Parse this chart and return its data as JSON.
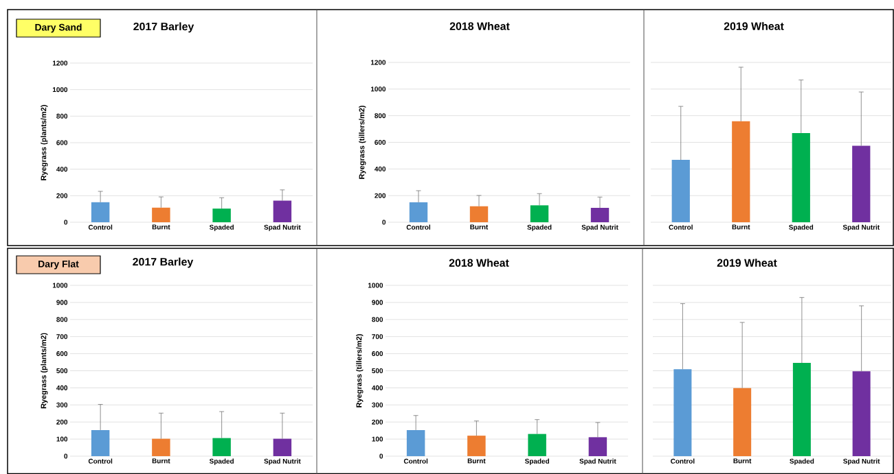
{
  "chart_data": [
    {
      "type": "bar",
      "title": "2017 Barley",
      "ylabel": "Ryegrass (plants/m2)",
      "annotations": [
        "Dary Sand"
      ],
      "categories": [
        "Control",
        "Burnt",
        "Spaded",
        "Spad Nutrit"
      ],
      "values": [
        151,
        110,
        103,
        163
      ],
      "errors": [
        [
          151,
          233
        ],
        [
          110,
          191
        ],
        [
          103,
          185
        ],
        [
          163,
          244
        ]
      ],
      "colors": [
        "#5b9bd5",
        "#ed7d31",
        "#00b050",
        "#7030a0"
      ],
      "ylim": [
        0,
        1200
      ],
      "yticks": [
        0,
        200,
        400,
        600,
        800,
        1000,
        1200
      ],
      "grid": "y"
    },
    {
      "type": "bar",
      "title": "2018 Wheat",
      "ylabel": "Ryegrass (tillers/m2)",
      "categories": [
        "Control",
        "Burnt",
        "Spaded",
        "Spad Nutrit"
      ],
      "values": [
        150,
        120,
        127,
        108
      ],
      "errors": [
        [
          150,
          237
        ],
        [
          120,
          201
        ],
        [
          127,
          215
        ],
        [
          108,
          189
        ]
      ],
      "colors": [
        "#5b9bd5",
        "#ed7d31",
        "#00b050",
        "#7030a0"
      ],
      "ylim": [
        0,
        1200
      ],
      "yticks": [
        0,
        200,
        400,
        600,
        800,
        1000,
        1200
      ],
      "grid": "y"
    },
    {
      "type": "bar",
      "title": "2019 Wheat",
      "categories": [
        "Control",
        "Burnt",
        "Spaded",
        "Spad Nutrit"
      ],
      "values": [
        468,
        758,
        670,
        574
      ],
      "errors": [
        [
          468,
          870
        ],
        [
          758,
          1164
        ],
        [
          670,
          1068
        ],
        [
          574,
          978
        ]
      ],
      "colors": [
        "#5b9bd5",
        "#ed7d31",
        "#00b050",
        "#7030a0"
      ],
      "ylim": [
        0,
        1200
      ],
      "yticks": [
        0,
        200,
        400,
        600,
        800,
        1000,
        1200
      ],
      "grid": "y",
      "tick_labels": "x"
    },
    {
      "type": "bar",
      "title": "2017 Barley",
      "ylabel": "Ryegrass (plants/m2)",
      "annotations": [
        "Dary Flat"
      ],
      "categories": [
        "Control",
        "Burnt",
        "Spaded",
        "Spad Nutrit"
      ],
      "values": [
        153,
        102,
        106,
        102
      ],
      "errors": [
        [
          153,
          303
        ],
        [
          102,
          252
        ],
        [
          106,
          261
        ],
        [
          102,
          252
        ]
      ],
      "colors": [
        "#5b9bd5",
        "#ed7d31",
        "#00b050",
        "#7030a0"
      ],
      "ylim": [
        0,
        1000
      ],
      "yticks": [
        0,
        100,
        200,
        300,
        400,
        500,
        600,
        700,
        800,
        900,
        1000
      ],
      "grid": "y"
    },
    {
      "type": "bar",
      "title": "2018 Wheat",
      "ylabel": "Ryegrass (tillers/m2)",
      "categories": [
        "Control",
        "Burnt",
        "Spaded",
        "Spad Nutrit"
      ],
      "values": [
        153,
        120,
        130,
        111
      ],
      "errors": [
        [
          153,
          238
        ],
        [
          120,
          206
        ],
        [
          130,
          214
        ],
        [
          111,
          197
        ]
      ],
      "colors": [
        "#5b9bd5",
        "#ed7d31",
        "#00b050",
        "#7030a0"
      ],
      "ylim": [
        0,
        1000
      ],
      "yticks": [
        0,
        100,
        200,
        300,
        400,
        500,
        600,
        700,
        800,
        900,
        1000
      ],
      "grid": "y"
    },
    {
      "type": "bar",
      "title": "2019 Wheat",
      "categories": [
        "Control",
        "Burnt",
        "Spaded",
        "Spad Nutrit"
      ],
      "values": [
        509,
        399,
        546,
        497
      ],
      "errors": [
        [
          509,
          893
        ],
        [
          399,
          783
        ],
        [
          546,
          929
        ],
        [
          497,
          880
        ]
      ],
      "colors": [
        "#5b9bd5",
        "#ed7d31",
        "#00b050",
        "#7030a0"
      ],
      "ylim": [
        0,
        1000
      ],
      "yticks": [
        0,
        100,
        200,
        300,
        400,
        500,
        600,
        700,
        800,
        900,
        1000
      ],
      "grid": "y",
      "tick_labels": "x"
    }
  ]
}
